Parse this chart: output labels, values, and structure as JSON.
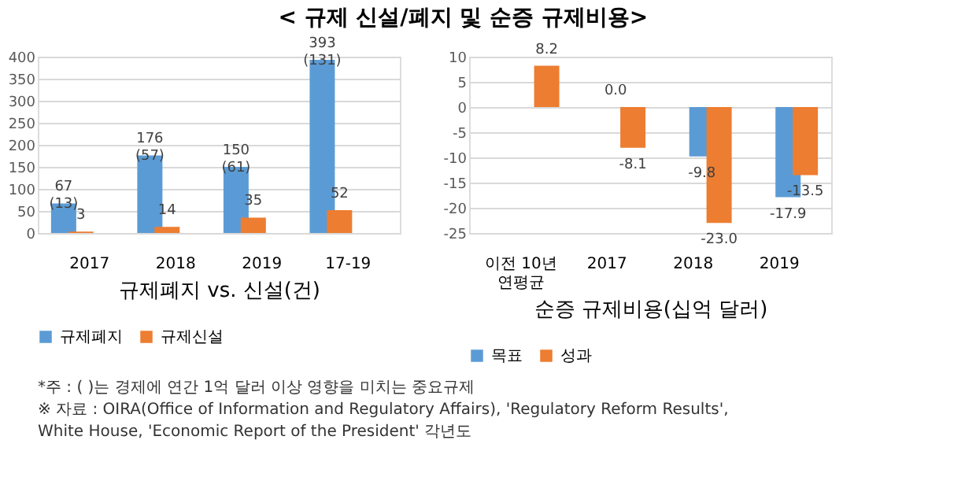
{
  "chart_data": [
    {
      "type": "bar",
      "title": "< 규제 신설/폐지 및 순증 규제비용>",
      "xlabel": "규제폐지 vs. 신설(건)",
      "categories": [
        "2017",
        "2018",
        "2019",
        "17-19"
      ],
      "series": [
        {
          "name": "규제폐지",
          "color": "#5b9bd5",
          "values": [
            67,
            176,
            150,
            393
          ],
          "value_labels": [
            "67\n(13)",
            "176\n(57)",
            "150\n(61)",
            "393\n(131)"
          ]
        },
        {
          "name": "규제신설",
          "color": "#ed7d31",
          "values": [
            3,
            14,
            35,
            52
          ],
          "value_labels": [
            "3",
            "14",
            "35",
            "52"
          ]
        }
      ],
      "ylim": [
        0,
        400
      ],
      "yticks": [
        0,
        50,
        100,
        150,
        200,
        250,
        300,
        350,
        400
      ],
      "grid": "y",
      "legend": "bottom",
      "annotations": [
        "*주 : ( )는 경제에 연간 1억 달러 이상 영향을 미치는 중요규제",
        "※ 자료 : OIRA(Office of Information and Regulatory Affairs), 'Regulatory Reform Results',",
        "White House, 'Economic Report of the President' 각년도"
      ]
    },
    {
      "type": "bar",
      "xlabel": "순증 규제비용(십억 달러)",
      "categories": [
        "이전 10년\n연평균",
        "2017",
        "2018",
        "2019"
      ],
      "series": [
        {
          "name": "목표",
          "color": "#5b9bd5",
          "values": [
            null,
            0.0,
            -9.8,
            -17.9
          ],
          "value_labels": [
            null,
            "0.0",
            "-9.8",
            "-17.9"
          ]
        },
        {
          "name": "성과",
          "color": "#ed7d31",
          "values": [
            8.2,
            -8.1,
            -23.0,
            -13.5
          ],
          "value_labels": [
            "8.2",
            "-8.1",
            "-23.0",
            "-13.5"
          ]
        }
      ],
      "ylim": [
        -25,
        10
      ],
      "yticks": [
        -25,
        -20,
        -15,
        -10,
        -5,
        0,
        5,
        10
      ],
      "grid": "y",
      "legend": "bottom"
    }
  ]
}
